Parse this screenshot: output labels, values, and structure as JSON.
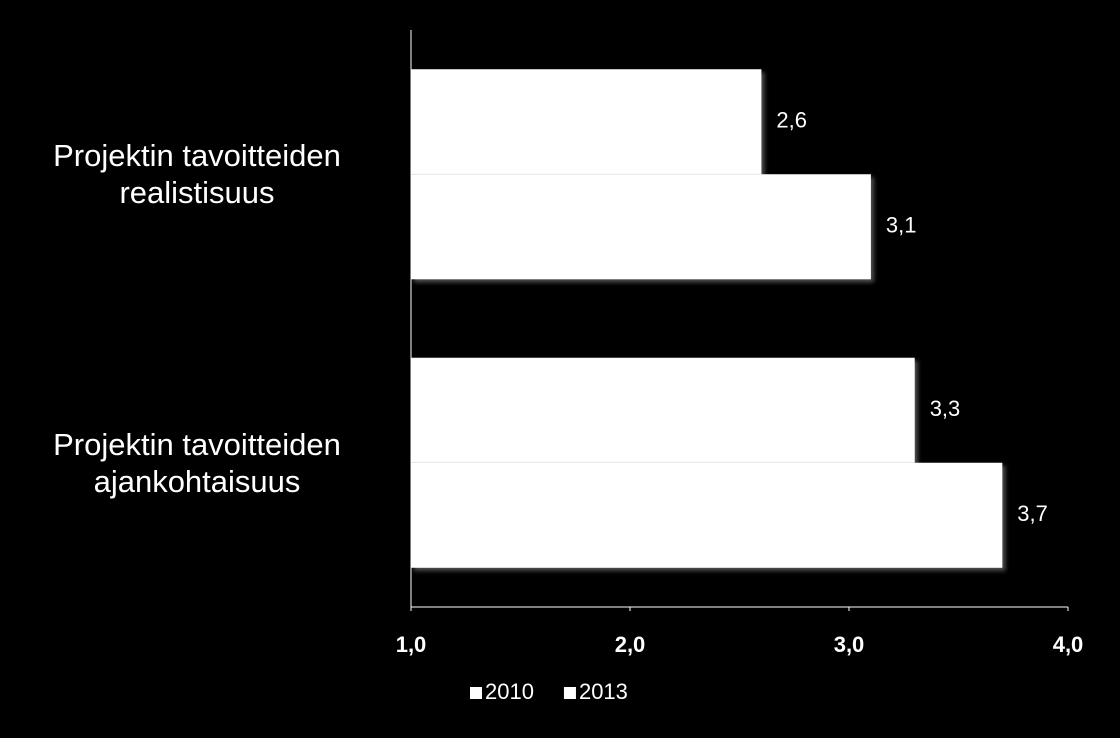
{
  "chart_data": {
    "type": "hbar",
    "categories": [
      "Projektin tavoitteiden realistisuus",
      "Projektin tavoitteiden ajankohtaisuus"
    ],
    "series": [
      {
        "name": "2010",
        "color": "#ffffff",
        "values": [
          2.6,
          3.3
        ],
        "value_labels": [
          "2,6",
          "3,3"
        ]
      },
      {
        "name": "2013",
        "color": "#ffffff",
        "values": [
          3.1,
          3.7
        ],
        "value_labels": [
          "3,1",
          "3,7"
        ]
      }
    ],
    "xlim": [
      1,
      4
    ],
    "xticks": [
      {
        "value": 1,
        "label": "1,0"
      },
      {
        "value": 2,
        "label": "2,0"
      },
      {
        "value": 3,
        "label": "3,0"
      },
      {
        "value": 4,
        "label": "4,0"
      }
    ],
    "grid": false,
    "legend": "bottom"
  }
}
